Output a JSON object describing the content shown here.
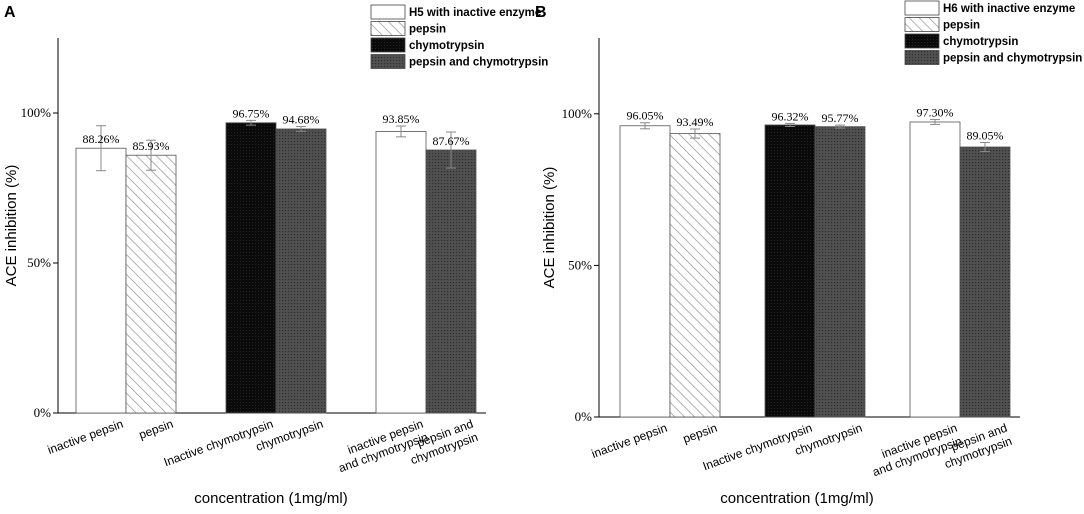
{
  "chart_data": [
    {
      "type": "bar",
      "panel": "A",
      "ylabel": "ACE inhibition (%)",
      "xlabel": "concentration (1mg/ml)",
      "ylim": [
        0,
        125
      ],
      "yticks": [
        0,
        50,
        100
      ],
      "ytick_labels": [
        "0%",
        "50%",
        "100%"
      ],
      "legend": [
        "H5 with inactive enzyme",
        "pepsin",
        "chymotrypsin",
        "pepsin and chymotrypsin"
      ],
      "legend_position": "top-right",
      "categories": [
        [
          "inactive pepsin"
        ],
        [
          "pepsin"
        ],
        [
          "Inactive chymotrypsin"
        ],
        [
          "chymotrypsin"
        ],
        [
          "inactive pepsin",
          "and chymotrypsin"
        ],
        [
          "pepsin and",
          "chymotrypsin"
        ]
      ],
      "values": [
        88.26,
        85.93,
        96.75,
        94.68,
        93.85,
        87.67
      ],
      "value_labels": [
        "88.26%",
        "85.93%",
        "96.75%",
        "94.68%",
        "93.85%",
        "87.67%"
      ],
      "errors": [
        7.5,
        5.0,
        0.8,
        0.8,
        1.8,
        6.0
      ],
      "patterns": [
        "white",
        "hatch",
        "black",
        "dots",
        "white",
        "dots"
      ]
    },
    {
      "type": "bar",
      "panel": "B",
      "ylabel": "ACE inhibition (%)",
      "xlabel": "concentration (1mg/ml)",
      "ylim": [
        0,
        125
      ],
      "yticks": [
        0,
        50,
        100
      ],
      "ytick_labels": [
        "0%",
        "50%",
        "100%"
      ],
      "legend": [
        "H6 with inactive enzyme",
        "pepsin",
        "chymotrypsin",
        "pepsin and chymotrypsin"
      ],
      "legend_position": "top-right",
      "categories": [
        [
          "inactive pepsin"
        ],
        [
          "pepsin"
        ],
        [
          "Inactive chymotrypsin"
        ],
        [
          "chymotrypsin"
        ],
        [
          "inactive pepsin",
          "and chymotrypsin"
        ],
        [
          "pepsin and",
          "chymotrypsin"
        ]
      ],
      "values": [
        96.05,
        93.49,
        96.32,
        95.77,
        97.3,
        89.05
      ],
      "value_labels": [
        "96.05%",
        "93.49%",
        "96.32%",
        "95.77%",
        "97.30%",
        "89.05%"
      ],
      "errors": [
        1.0,
        1.5,
        0.5,
        0.5,
        0.8,
        1.5
      ],
      "patterns": [
        "white",
        "hatch",
        "black",
        "dots",
        "white",
        "dots"
      ]
    }
  ]
}
